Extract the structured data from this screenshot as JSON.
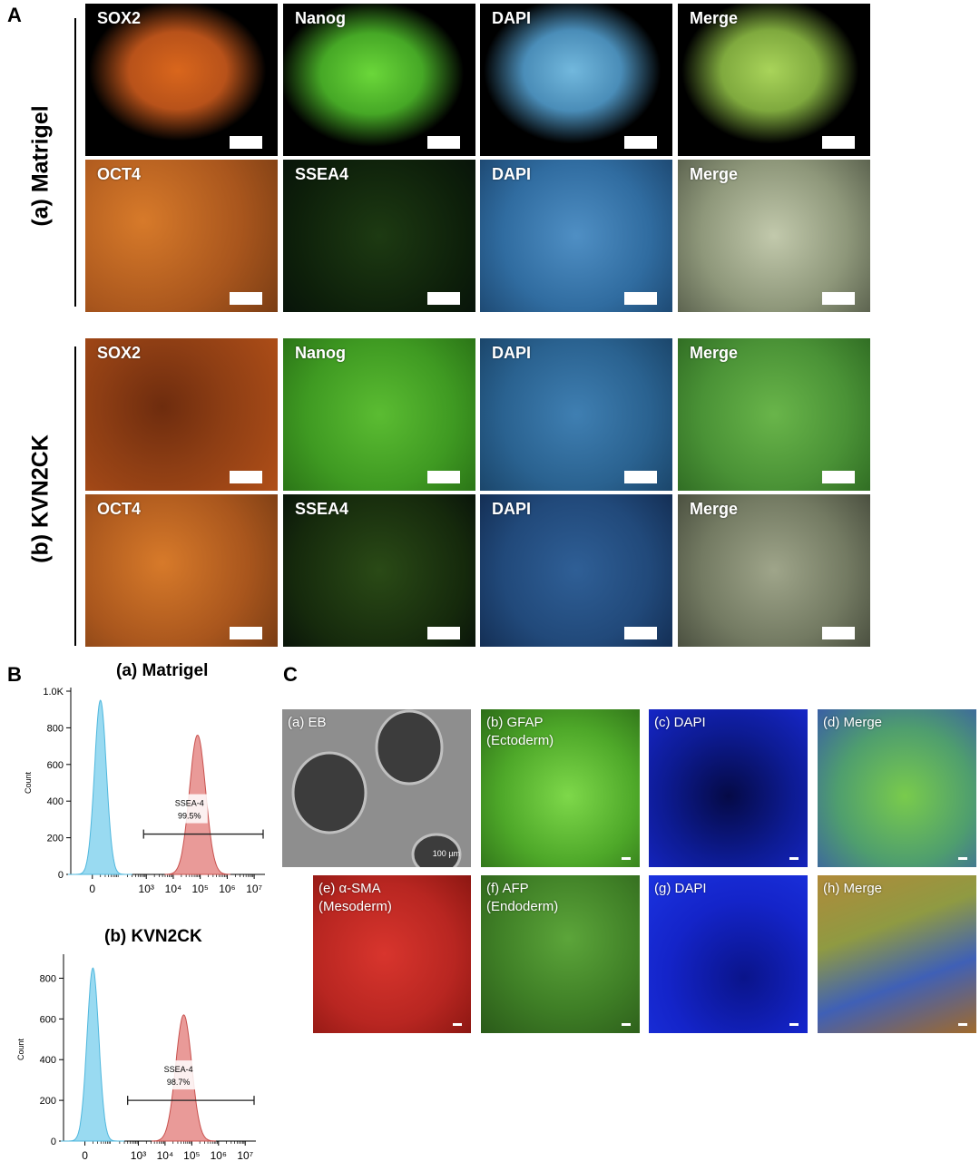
{
  "figure": {
    "panel_letters": {
      "a": "A",
      "b": "B",
      "c": "C"
    },
    "panel_a": {
      "groups": [
        {
          "label": "(a) Matrigel",
          "rows": [
            [
              "SOX2",
              "Nanog",
              "DAPI",
              "Merge"
            ],
            [
              "OCT4",
              "SSEA4",
              "DAPI",
              "Merge"
            ]
          ]
        },
        {
          "label": "(b) KVN2CK",
          "rows": [
            [
              "SOX2",
              "Nanog",
              "DAPI",
              "Merge"
            ],
            [
              "OCT4",
              "SSEA4",
              "DAPI",
              "Merge"
            ]
          ]
        }
      ]
    },
    "panel_c": {
      "tiles": [
        "(a) EB",
        "(b) GFAP\n(Ectoderm)",
        "(c) DAPI",
        "(d) Merge",
        "(e) α-SMA\n(Mesoderm)",
        "(f) AFP\n(Endoderm)",
        "(g) DAPI",
        "(h) Merge"
      ],
      "scale_label": "100 µm"
    },
    "colors": {
      "sox2": "#d9661c",
      "nanog": "#58c431",
      "dapi_a": "#57a7d2",
      "cyan_hist": "#87d3ee",
      "red_hist": "#e58886",
      "ctile_blue": "#1424c9",
      "ctile_red": "#c82a24"
    }
  },
  "chart_data": [
    {
      "type": "area",
      "title": "(a) Matrigel",
      "xlabel": "",
      "ylabel": "Count",
      "y_ticks": [
        "0",
        "200",
        "400",
        "600",
        "800",
        "1.0K"
      ],
      "x_ticks": [
        "0",
        "10³",
        "10⁴",
        "10⁵",
        "10⁶",
        "10⁷"
      ],
      "ylim": [
        0,
        1000
      ],
      "gate": {
        "label": "SSEA-4",
        "value": "99.5%"
      },
      "series": [
        {
          "peak_log10_x": 1.1,
          "peak_count": 950
        },
        {
          "peak_log10_x": 4.7,
          "peak_count": 760
        }
      ]
    },
    {
      "type": "area",
      "title": "(b) KVN2CK",
      "xlabel": "",
      "ylabel": "Count",
      "y_ticks": [
        "0",
        "200",
        "400",
        "600",
        "800"
      ],
      "x_ticks": [
        "0",
        "10³",
        "10⁴",
        "10⁵",
        "10⁶",
        "10⁷"
      ],
      "ylim": [
        0,
        900
      ],
      "gate": {
        "label": "SSEA-4",
        "value": "98.7%"
      },
      "series": [
        {
          "peak_log10_x": 1.1,
          "peak_count": 850
        },
        {
          "peak_log10_x": 4.5,
          "peak_count": 620
        }
      ]
    }
  ]
}
